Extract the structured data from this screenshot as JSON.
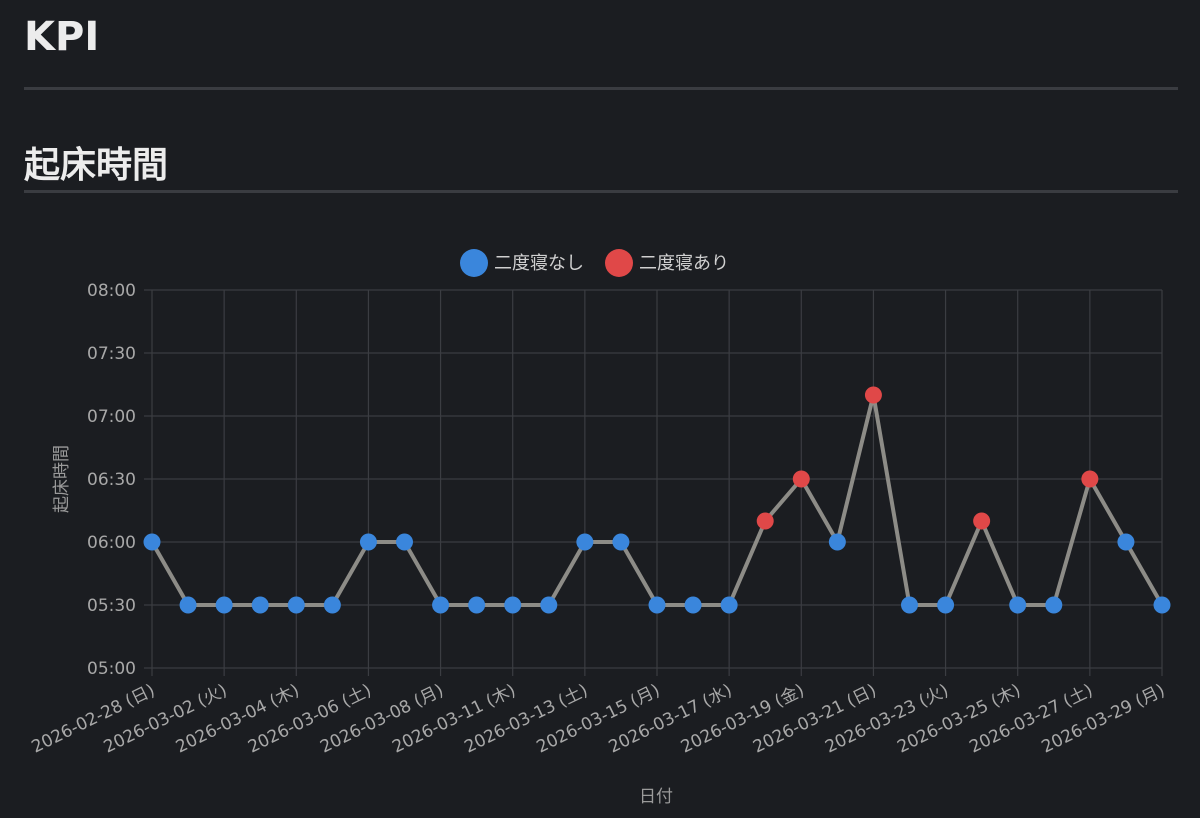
{
  "page": {
    "title": "KPI"
  },
  "section": {
    "title": "起床時間"
  },
  "colors": {
    "background": "#1b1d21",
    "grid": "#3b3d42",
    "line": "#8d8c87",
    "no_snooze": "#3a86dc",
    "snooze": "#e04848"
  },
  "chart_data": {
    "type": "line",
    "xlabel": "日付",
    "ylabel": "起床時間",
    "ylim": [
      "05:00",
      "08:00"
    ],
    "yticks": [
      "08:00",
      "07:30",
      "07:00",
      "06:30",
      "06:00",
      "05:30",
      "05:00"
    ],
    "grid": true,
    "legend_position": "top",
    "legend": [
      {
        "label": "二度寝なし",
        "color_key": "no_snooze"
      },
      {
        "label": "二度寝あり",
        "color_key": "snooze"
      }
    ],
    "xtick_labels": [
      "2026-02-28 (日)",
      "2026-03-02 (火)",
      "2026-03-04 (木)",
      "2026-03-06 (土)",
      "2026-03-08 (月)",
      "2026-03-11 (木)",
      "2026-03-13 (土)",
      "2026-03-15 (月)",
      "2026-03-17 (水)",
      "2026-03-19 (金)",
      "2026-03-21 (日)",
      "2026-03-23 (火)",
      "2026-03-25 (木)",
      "2026-03-27 (土)",
      "2026-03-29 (月)"
    ],
    "points": [
      {
        "time": "06:00",
        "snooze": false
      },
      {
        "time": "05:30",
        "snooze": false
      },
      {
        "time": "05:30",
        "snooze": false
      },
      {
        "time": "05:30",
        "snooze": false
      },
      {
        "time": "05:30",
        "snooze": false
      },
      {
        "time": "05:30",
        "snooze": false
      },
      {
        "time": "06:00",
        "snooze": false
      },
      {
        "time": "06:00",
        "snooze": false
      },
      {
        "time": "05:30",
        "snooze": false
      },
      {
        "time": "05:30",
        "snooze": false
      },
      {
        "time": "05:30",
        "snooze": false
      },
      {
        "time": "05:30",
        "snooze": false
      },
      {
        "time": "06:00",
        "snooze": false
      },
      {
        "time": "06:00",
        "snooze": false
      },
      {
        "time": "05:30",
        "snooze": false
      },
      {
        "time": "05:30",
        "snooze": false
      },
      {
        "time": "05:30",
        "snooze": false
      },
      {
        "time": "06:10",
        "snooze": true
      },
      {
        "time": "06:30",
        "snooze": true
      },
      {
        "time": "06:00",
        "snooze": false
      },
      {
        "time": "07:10",
        "snooze": true
      },
      {
        "time": "05:30",
        "snooze": false
      },
      {
        "time": "05:30",
        "snooze": false
      },
      {
        "time": "06:10",
        "snooze": true
      },
      {
        "time": "05:30",
        "snooze": false
      },
      {
        "time": "05:30",
        "snooze": false
      },
      {
        "time": "06:30",
        "snooze": true
      },
      {
        "time": "06:00",
        "snooze": false
      },
      {
        "time": "05:30",
        "snooze": false
      }
    ]
  }
}
